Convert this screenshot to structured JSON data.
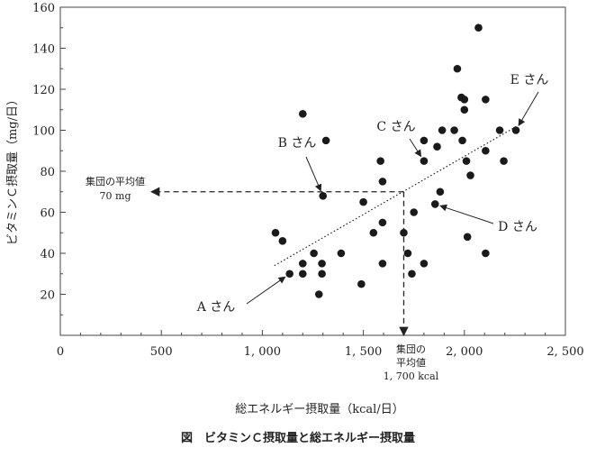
{
  "chart_data": {
    "type": "scatter",
    "title": "図　ビタミンＣ摂取量と総エネルギー摂取量",
    "xlabel": "総エネルギー摂取量（kcal/日）",
    "ylabel": "ビタミンＣ摂取量（mg/日）",
    "xlim": [
      0,
      2500
    ],
    "ylim": [
      0,
      160
    ],
    "xticks": [
      {
        "value": 0,
        "label": "0"
      },
      {
        "value": 500,
        "label": "500"
      },
      {
        "value": 1000,
        "label": "1, 000"
      },
      {
        "value": 1500,
        "label": "1, 500"
      },
      {
        "value": 2000,
        "label": "2, 000"
      },
      {
        "value": 2500,
        "label": "2, 500"
      }
    ],
    "yticks": [
      {
        "value": 20,
        "label": "20"
      },
      {
        "value": 40,
        "label": "40"
      },
      {
        "value": 60,
        "label": "60"
      },
      {
        "value": 80,
        "label": "80"
      },
      {
        "value": 100,
        "label": "100"
      },
      {
        "value": 120,
        "label": "120"
      },
      {
        "value": 140,
        "label": "140"
      },
      {
        "value": 160,
        "label": "160"
      }
    ],
    "grid": false,
    "points": [
      {
        "x": 1065,
        "y": 50
      },
      {
        "x": 1100,
        "y": 46
      },
      {
        "x": 1135,
        "y": 30
      },
      {
        "x": 1200,
        "y": 35
      },
      {
        "x": 1200,
        "y": 30
      },
      {
        "x": 1200,
        "y": 108
      },
      {
        "x": 1255,
        "y": 40
      },
      {
        "x": 1280,
        "y": 20
      },
      {
        "x": 1295,
        "y": 35
      },
      {
        "x": 1295,
        "y": 30
      },
      {
        "x": 1300,
        "y": 68
      },
      {
        "x": 1315,
        "y": 95
      },
      {
        "x": 1390,
        "y": 40
      },
      {
        "x": 1490,
        "y": 25
      },
      {
        "x": 1500,
        "y": 65
      },
      {
        "x": 1550,
        "y": 50
      },
      {
        "x": 1585,
        "y": 85
      },
      {
        "x": 1595,
        "y": 75
      },
      {
        "x": 1595,
        "y": 55
      },
      {
        "x": 1595,
        "y": 35
      },
      {
        "x": 1700,
        "y": 50
      },
      {
        "x": 1720,
        "y": 40
      },
      {
        "x": 1740,
        "y": 30
      },
      {
        "x": 1750,
        "y": 60
      },
      {
        "x": 1800,
        "y": 95
      },
      {
        "x": 1800,
        "y": 85
      },
      {
        "x": 1800,
        "y": 35
      },
      {
        "x": 1855,
        "y": 64
      },
      {
        "x": 1865,
        "y": 92
      },
      {
        "x": 1880,
        "y": 70
      },
      {
        "x": 1890,
        "y": 100
      },
      {
        "x": 1950,
        "y": 100
      },
      {
        "x": 1965,
        "y": 130
      },
      {
        "x": 1985,
        "y": 116
      },
      {
        "x": 1990,
        "y": 95
      },
      {
        "x": 2000,
        "y": 115
      },
      {
        "x": 2000,
        "y": 110
      },
      {
        "x": 2010,
        "y": 85
      },
      {
        "x": 2015,
        "y": 48
      },
      {
        "x": 2030,
        "y": 78
      },
      {
        "x": 2070,
        "y": 150
      },
      {
        "x": 2105,
        "y": 115
      },
      {
        "x": 2105,
        "y": 90
      },
      {
        "x": 2105,
        "y": 40
      },
      {
        "x": 2175,
        "y": 100
      },
      {
        "x": 2195,
        "y": 85
      },
      {
        "x": 2255,
        "y": 100
      }
    ],
    "trendline": {
      "x": [
        1060,
        2260
      ],
      "y": [
        34,
        102
      ]
    },
    "reference_lines": [
      {
        "axis": "y",
        "value": 70,
        "from_x": 1700,
        "to_x": 450,
        "label": [
          "集団の平均値",
          "70 mg"
        ]
      },
      {
        "axis": "x",
        "value": 1700,
        "from_y": 70,
        "to_y": 0,
        "label": [
          "集団の",
          "平均値",
          "1, 700 kcal"
        ]
      }
    ],
    "annotations": [
      {
        "label": "A さん",
        "point": {
          "x": 1135,
          "y": 30
        }
      },
      {
        "label": "B さん",
        "point": {
          "x": 1300,
          "y": 68
        }
      },
      {
        "label": "C さん",
        "point": {
          "x": 1800,
          "y": 85
        }
      },
      {
        "label": "D さん",
        "point": {
          "x": 1855,
          "y": 64
        }
      },
      {
        "label": "E さん",
        "point": {
          "x": 2255,
          "y": 100
        }
      }
    ]
  }
}
